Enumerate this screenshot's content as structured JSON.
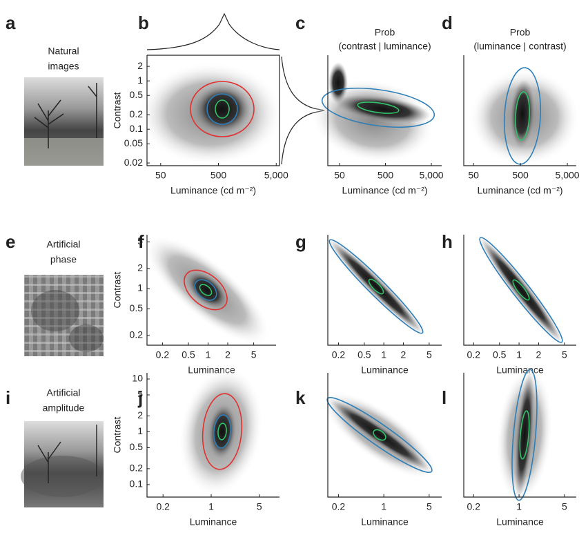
{
  "panels": [
    {
      "letter": "a",
      "caption": [
        "Natural",
        "images"
      ]
    },
    {
      "letter": "b",
      "xlabel": "Luminance (cd m⁻²)",
      "ylabel": "Contrast",
      "xlim": [
        29,
        5700
      ],
      "ylim": [
        0.0176,
        3.4
      ],
      "xticks": [
        50,
        500,
        {
          "value": 5000,
          "label": "5,000"
        }
      ],
      "yticks": [
        0.02,
        0.05,
        0.1,
        0.2,
        0.5,
        1,
        2
      ]
    },
    {
      "letter": "c",
      "title": [
        "Prob",
        "(contrast | luminance)"
      ],
      "xlabel": "Luminance (cd m⁻²)",
      "xlim": [
        27.7,
        8400
      ],
      "xticks": [
        50,
        500,
        {
          "value": 5000,
          "label": "5,000"
        }
      ]
    },
    {
      "letter": "d",
      "title": [
        "Prob",
        "(luminance | contrast)"
      ],
      "xlabel": "Luminance (cd m⁻²)",
      "xlim": [
        31,
        7750
      ],
      "xticks": [
        50,
        500,
        {
          "value": 5000,
          "label": "5,000"
        }
      ]
    },
    {
      "letter": "e",
      "caption": [
        "Artificial",
        "phase"
      ]
    },
    {
      "letter": "f",
      "xlabel": "Luminance",
      "ylabel": "Contrast",
      "xlim": [
        0.116,
        11
      ],
      "ylim": [
        0.143,
        6.37
      ],
      "xticks": [
        0.2,
        0.5,
        1,
        2,
        5
      ],
      "yticks": [
        0.2,
        0.5,
        1,
        2,
        5
      ]
    },
    {
      "letter": "g",
      "xlabel": "Luminance",
      "xlim": [
        0.137,
        7.8
      ],
      "xticks": [
        0.2,
        0.5,
        1,
        2,
        5
      ]
    },
    {
      "letter": "h",
      "xlabel": "Luminance",
      "xlim": [
        0.141,
        7.6
      ],
      "xticks": [
        0.2,
        0.5,
        1,
        2,
        5
      ]
    },
    {
      "letter": "i",
      "caption": [
        "Artificial",
        "amplitude"
      ]
    },
    {
      "letter": "j",
      "xlabel": "Luminance",
      "ylabel": "Contrast",
      "xlim": [
        0.117,
        9.8
      ],
      "ylim": [
        0.058,
        13.1
      ],
      "xticks": [
        0.2,
        1,
        5
      ],
      "yticks": [
        0.1,
        0.2,
        0.5,
        1,
        2,
        5,
        10
      ]
    },
    {
      "letter": "k",
      "xlabel": "Luminance",
      "xlim": [
        0.137,
        7.8
      ],
      "xticks": [
        0.2,
        1,
        5
      ]
    },
    {
      "letter": "l",
      "xlabel": "Luminance",
      "xlim": [
        0.141,
        7.6
      ],
      "xticks": [
        0.2,
        1,
        5
      ]
    }
  ]
}
